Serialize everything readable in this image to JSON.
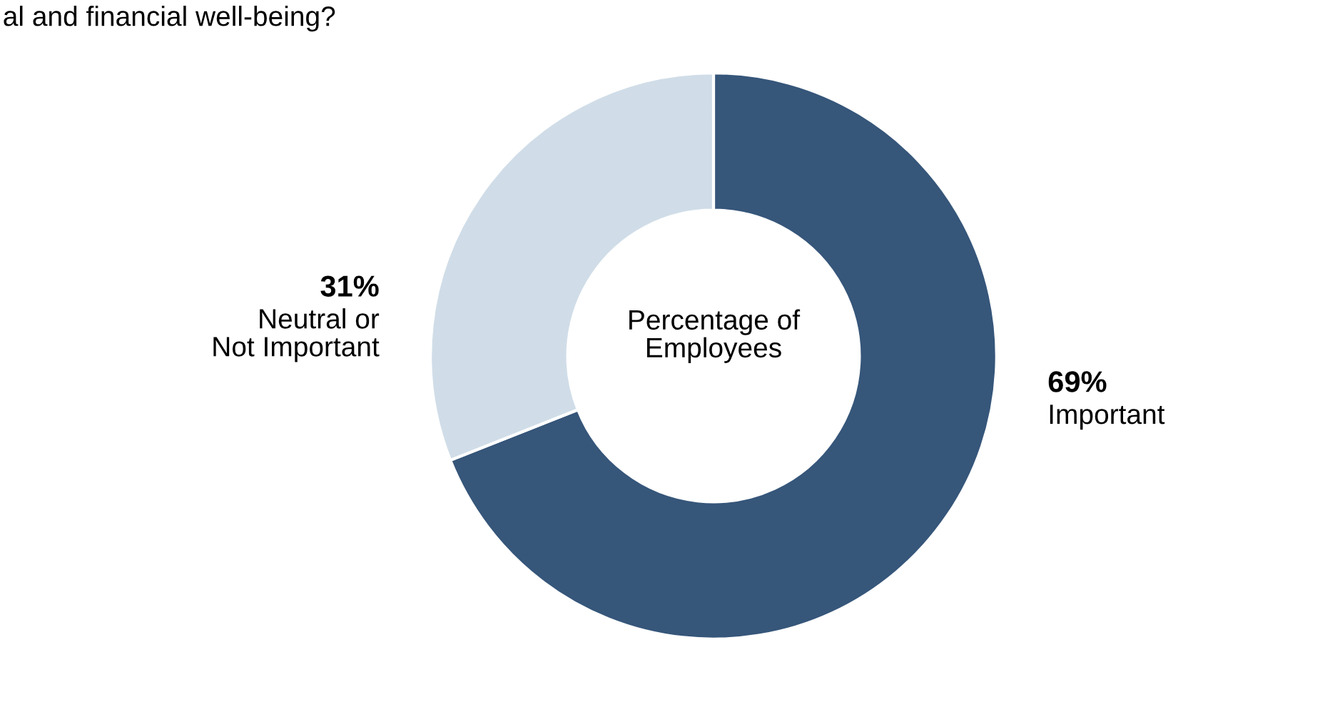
{
  "chart_data": {
    "type": "donut",
    "title": "al and financial well-being?",
    "categories": [
      "Important",
      "Neutral or\nNot Important"
    ],
    "values": [
      69,
      31
    ],
    "colors": [
      "#36567a",
      "#d0dde8"
    ],
    "value_labels": [
      "69%",
      "31%"
    ],
    "annotations": [
      "Percentage of\nEmployees"
    ],
    "legend": false
  }
}
